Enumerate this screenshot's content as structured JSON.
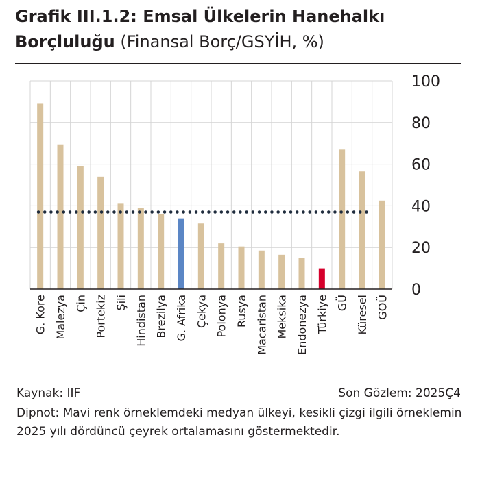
{
  "title": {
    "bold": "Grafik III.1.2: Emsal Ülkelerin Hanehalkı Borçluluğu",
    "subtitle": "(Finansal Borç/GSYİH, %)"
  },
  "footer": {
    "source": "Kaynak: IIF",
    "last_observation": "Son Gözlem: 2025Ç4",
    "note": "Dipnot: Mavi renk örneklemdeki medyan ülkeyi, kesikli çizgi ilgili örneklemin 2025 yılı dördüncü çeyrek ortalamasını göstermektedir."
  },
  "colors": {
    "bar": "#d8c29d",
    "median_bar": "#5b86c5",
    "turkiye_bar": "#d5002b",
    "dotted_line": "#1f2c3d",
    "grid": "#d4d4d4"
  },
  "chart_data": {
    "type": "bar",
    "categories": [
      "G. Kore",
      "Malezya",
      "Çin",
      "Portekiz",
      "Şili",
      "Hindistan",
      "Brezilya",
      "G. Afrika",
      "Çekya",
      "Polonya",
      "Rusya",
      "Macaristan",
      "Meksika",
      "Endonezya",
      "Türkiye",
      "GÜ",
      "Küresel",
      "GOÜ"
    ],
    "values": [
      89,
      69.5,
      59,
      54,
      41,
      39,
      36,
      34,
      31.5,
      22,
      20.5,
      18.5,
      16.5,
      15,
      10,
      67,
      56.5,
      42.5
    ],
    "highlight": {
      "G. Afrika": "median",
      "Türkiye": "turkiye"
    },
    "average_line": 37,
    "ylim": [
      0,
      100
    ],
    "yticks": [
      0,
      20,
      40,
      60,
      80,
      100
    ],
    "y_axis_side": "right",
    "grid": true
  }
}
